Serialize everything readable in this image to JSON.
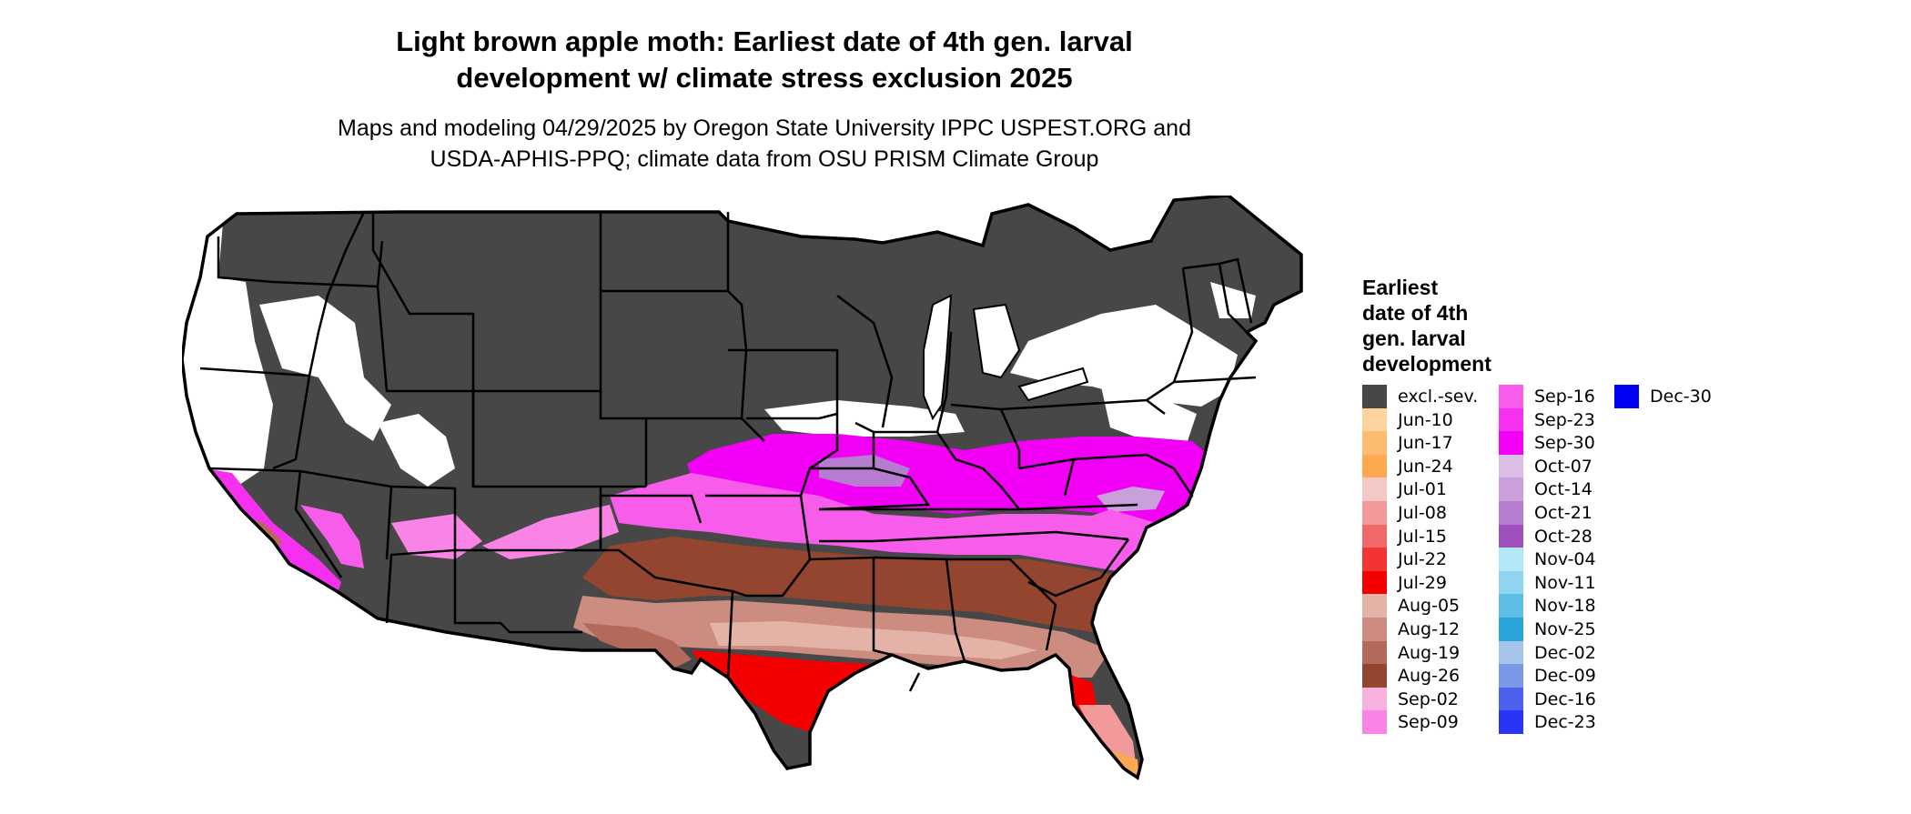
{
  "title": [
    "Light brown apple moth: Earliest date of 4th gen. larval",
    "development w/ climate stress exclusion 2025"
  ],
  "subtitle": [
    "Maps and modeling 04/29/2025 by Oregon State University IPPC USPEST.ORG and",
    "USDA-APHIS-PPQ; climate data from OSU PRISM Climate Group"
  ],
  "legend": {
    "title": [
      "Earliest",
      "date of 4th",
      "gen. larval",
      "development"
    ],
    "items": [
      {
        "label": "excl.-sev.",
        "color": "#474747"
      },
      {
        "label": "Jun-10",
        "color": "#fdd49e"
      },
      {
        "label": "Jun-17",
        "color": "#fdbb72"
      },
      {
        "label": "Jun-24",
        "color": "#fca94f"
      },
      {
        "label": "Jul-01",
        "color": "#f5c8c8"
      },
      {
        "label": "Jul-08",
        "color": "#f29a9a"
      },
      {
        "label": "Jul-15",
        "color": "#f06868"
      },
      {
        "label": "Jul-22",
        "color": "#f23434"
      },
      {
        "label": "Jul-29",
        "color": "#f50000"
      },
      {
        "label": "Aug-05",
        "color": "#e3b3a8"
      },
      {
        "label": "Aug-12",
        "color": "#cc8c80"
      },
      {
        "label": "Aug-19",
        "color": "#b36a5a"
      },
      {
        "label": "Aug-26",
        "color": "#94452f"
      },
      {
        "label": "Sep-02",
        "color": "#f8b2e0"
      },
      {
        "label": "Sep-09",
        "color": "#f984e6"
      },
      {
        "label": "Sep-16",
        "color": "#f75ceb"
      },
      {
        "label": "Sep-23",
        "color": "#f530ef"
      },
      {
        "label": "Sep-30",
        "color": "#f200f5"
      },
      {
        "label": "Oct-07",
        "color": "#dbbde6"
      },
      {
        "label": "Oct-14",
        "color": "#c9a0dc"
      },
      {
        "label": "Oct-21",
        "color": "#b57ccf"
      },
      {
        "label": "Oct-28",
        "color": "#a050bd"
      },
      {
        "label": "Nov-04",
        "color": "#b3e8f7"
      },
      {
        "label": "Nov-11",
        "color": "#8fd5ef"
      },
      {
        "label": "Nov-18",
        "color": "#5ebee6"
      },
      {
        "label": "Nov-25",
        "color": "#2aa5d9"
      },
      {
        "label": "Dec-02",
        "color": "#a7c4ea"
      },
      {
        "label": "Dec-09",
        "color": "#7b98e6"
      },
      {
        "label": "Dec-16",
        "color": "#5060ee"
      },
      {
        "label": "Dec-23",
        "color": "#2a34f4"
      },
      {
        "label": "Dec-30",
        "color": "#0000f5"
      }
    ]
  },
  "map": {
    "colors": {
      "excluded": "#474747",
      "outside": "#ffffff",
      "border": "#000000"
    }
  }
}
